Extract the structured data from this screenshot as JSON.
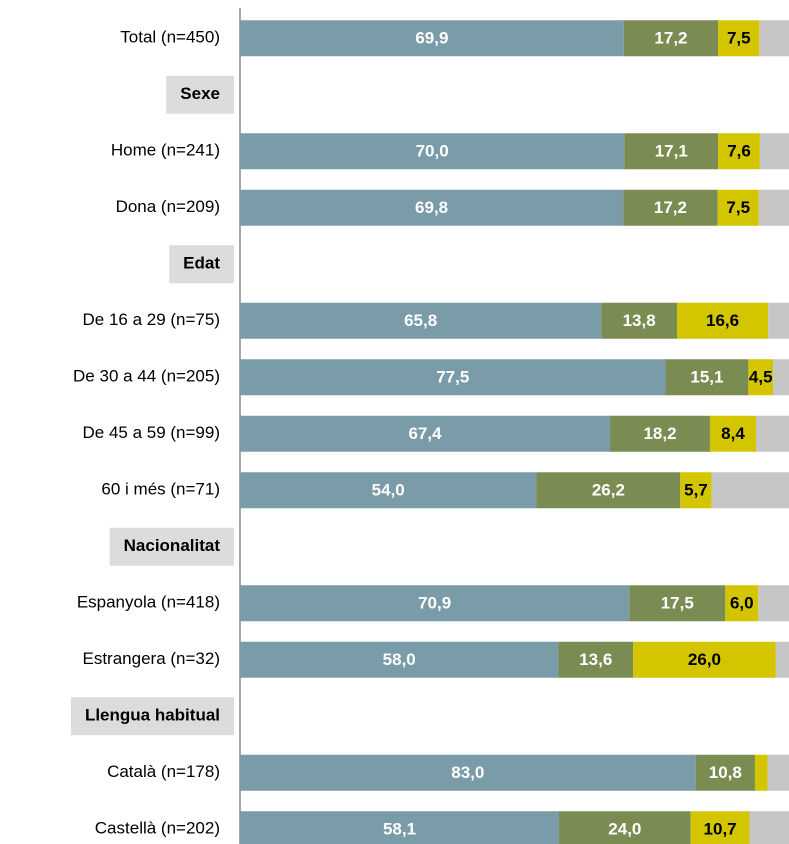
{
  "chart_data": {
    "type": "stacked-bar-horizontal",
    "categories": [
      "Total (n=450)",
      "Sexe",
      "Home (n=241)",
      "Dona (n=209)",
      "Edat",
      "De 16 a 29 (n=75)",
      "De 30 a 44 (n=205)",
      "De 45 a 59 (n=99)",
      "60 i més (n=71)",
      "Nacionalitat",
      "Espanyola (n=418)",
      "Estrangera (n=32)",
      "Llengua habitual",
      "Català (n=178)",
      "Castellà (n=202)"
    ],
    "xlim": [
      0,
      100
    ],
    "series": [
      {
        "color": "#7a9ba8",
        "label_color": "#ffffff",
        "values": [
          69.9,
          null,
          70.0,
          69.8,
          null,
          65.8,
          77.5,
          67.4,
          54.0,
          null,
          70.9,
          58.0,
          null,
          83.0,
          58.1
        ],
        "value_labels": [
          "69,9",
          null,
          "70,0",
          "69,8",
          null,
          "65,8",
          "77,5",
          "67,4",
          "54,0",
          null,
          "70,9",
          "58,0",
          null,
          "83,0",
          "58,1"
        ]
      },
      {
        "color": "#7b8c52",
        "label_color": "#ffffff",
        "values": [
          17.2,
          null,
          17.1,
          17.2,
          null,
          13.8,
          15.1,
          18.2,
          26.2,
          null,
          17.5,
          13.6,
          null,
          10.8,
          24.0
        ],
        "value_labels": [
          "17,2",
          null,
          "17,1",
          "17,2",
          null,
          "13,8",
          "15,1",
          "18,2",
          "26,2",
          null,
          "17,5",
          "13,6",
          null,
          "10,8",
          "24,0"
        ]
      },
      {
        "color": "#d3c500",
        "label_color": "#000000",
        "values": [
          7.5,
          null,
          7.6,
          7.5,
          null,
          16.6,
          4.5,
          8.4,
          5.7,
          null,
          6.0,
          26.0,
          null,
          2.3,
          10.7
        ],
        "value_labels": [
          "7,5",
          null,
          "7,6",
          "7,5",
          null,
          "16,6",
          "4,5",
          "8,4",
          "5,7",
          null,
          "6,0",
          "26,0",
          null,
          null,
          "10,7"
        ]
      },
      {
        "color": "#c6c6c6",
        "values": [
          5.4,
          null,
          5.3,
          5.5,
          null,
          3.8,
          2.9,
          6.0,
          14.1,
          null,
          5.6,
          2.4,
          null,
          3.9,
          7.2
        ]
      }
    ]
  }
}
